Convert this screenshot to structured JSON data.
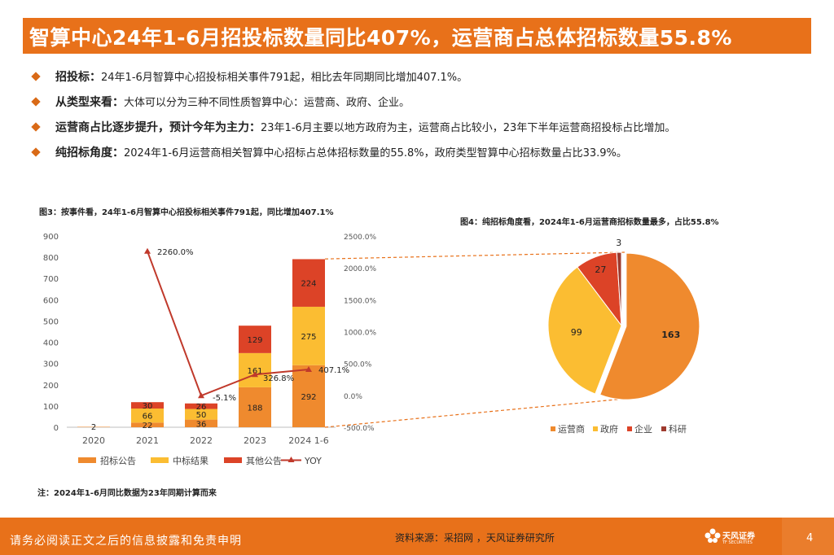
{
  "title": "智算中心24年1-6月招投标数量同比407%，运营商占总体招标数量55.8%",
  "bullets": [
    {
      "bold": "招投标：",
      "text": "24年1-6月智算中心招投标相关事件791起，相比去年同期同比增加407.1%。"
    },
    {
      "bold": "从类型来看：",
      "text": "大体可以分为三种不同性质智算中心：运营商、政府、企业。"
    },
    {
      "bold": "运营商占比逐步提升，预计今年为主力：",
      "text": "23年1-6月主要以地方政府为主，运营商占比较小，23年下半年运营商招投标占比增加。"
    },
    {
      "bold": "纯招标角度：",
      "text": "2024年1-6月运营商相关智算中心招标占总体招标数量的55.8%，政府类型智算中心招标数量占比33.9%。"
    }
  ],
  "fig3_title": "图3：按事件看，24年1-6月智算中心招投标相关事件791起，同比增加407.1%",
  "fig4_title": "图4：纯招标角度看，2024年1-6月运营商招标数量最多，占比55.8%",
  "note": "注：2024年1-6月同比数据为23年同期计算而来",
  "footer": {
    "disclaimer": "请务必阅读正文之后的信息披露和免责申明",
    "source": "资料来源：采招网 ，天风证券研究所",
    "logo_brand": "天风证券",
    "logo_sub": "TF SECURITIES",
    "page": "4"
  },
  "colors": {
    "zhaobiao": "#ef8a2e",
    "zhongbiao": "#fbbd32",
    "qita": "#dc4327",
    "yoy": "#c0392b",
    "keyan": "#9e3a2e",
    "accent": "#e8711a"
  },
  "chart_data": [
    {
      "type": "bar",
      "stacked": true,
      "categories": [
        "2020",
        "2021",
        "2022",
        "2023",
        "2024 1-6"
      ],
      "series": [
        {
          "name": "招标公告",
          "values": [
            2,
            22,
            36,
            188,
            292
          ],
          "labels": [
            "2",
            "22",
            "36",
            "188",
            "292"
          ]
        },
        {
          "name": "中标结果",
          "values": [
            0,
            66,
            50,
            161,
            275
          ],
          "labels": [
            "",
            "66",
            "50",
            "161",
            "275"
          ]
        },
        {
          "name": "其他公告",
          "values": [
            0,
            30,
            26,
            129,
            224
          ],
          "labels": [
            "",
            "30",
            "26",
            "129",
            "224"
          ]
        }
      ],
      "line": {
        "name": "YOY",
        "values": [
          null,
          2260.0,
          -5.1,
          326.8,
          407.1
        ],
        "labels": [
          "",
          "2260.0%",
          "-5.1%",
          "326.8%",
          "407.1%"
        ]
      },
      "ylim": [
        0,
        900
      ],
      "yticks": [
        "0",
        "100",
        "200",
        "300",
        "400",
        "500",
        "600",
        "700",
        "800",
        "900"
      ],
      "y2lim": [
        -500,
        2500
      ],
      "y2ticks": [
        "-500.0%",
        "0.0%",
        "500.0%",
        "1000.0%",
        "1500.0%",
        "2000.0%",
        "2500.0%"
      ],
      "legend_position": "bottom"
    },
    {
      "type": "pie",
      "categories": [
        "运营商",
        "政府",
        "企业",
        "科研"
      ],
      "values": [
        163,
        99,
        27,
        3
      ],
      "labels": [
        "163",
        "99",
        "27",
        "3"
      ],
      "legend_position": "bottom"
    }
  ]
}
